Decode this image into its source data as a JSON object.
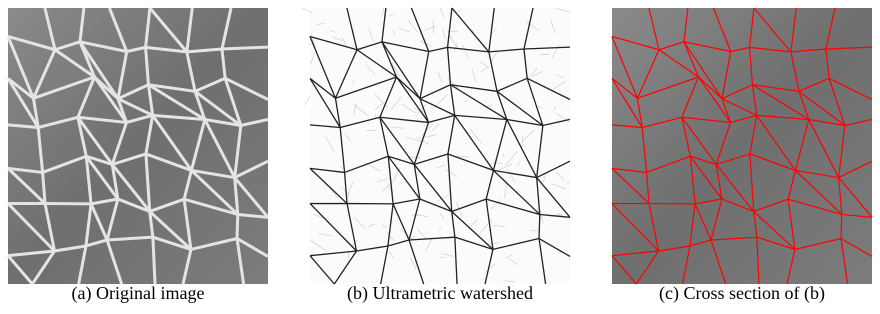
{
  "figure": {
    "panels": [
      {
        "caption": "(a) Original image"
      },
      {
        "caption": "(b) Ultrametric watershed"
      },
      {
        "caption": "(c) Cross section of (b)"
      }
    ]
  }
}
